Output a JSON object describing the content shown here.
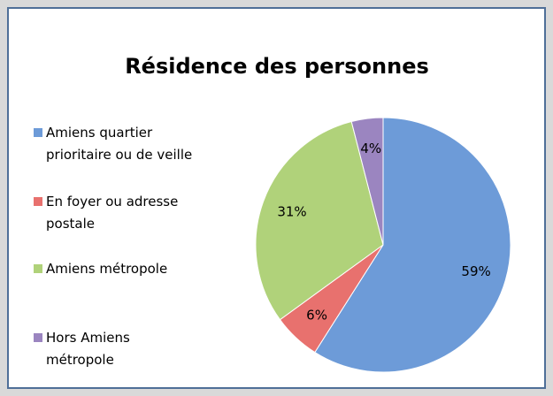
{
  "chart_data": {
    "type": "pie",
    "title": "Résidence des personnes",
    "categories": [
      "Amiens quartier prioritaire ou de veille",
      "En foyer ou adresse postale",
      "Amiens métropole",
      "Hors Amiens métropole"
    ],
    "values": [
      59,
      6,
      31,
      4
    ],
    "value_labels": [
      "59%",
      "6%",
      "31%",
      "4%"
    ],
    "colors": [
      "#6d9bd8",
      "#e8716e",
      "#b0d27a",
      "#9b85c0"
    ]
  }
}
